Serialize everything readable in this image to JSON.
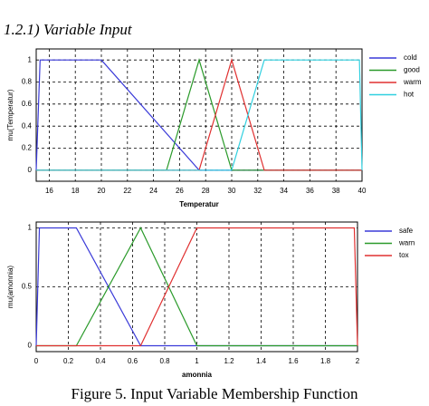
{
  "heading": "1.2.1) Variable Input",
  "caption": "Figure 5. Input Variable Membership Function",
  "chart_data": [
    {
      "type": "line",
      "xlabel": "Temperatur",
      "ylabel": "mu(Temperatur)",
      "xlim": [
        15,
        40
      ],
      "xticks": [
        16,
        18,
        20,
        22,
        24,
        26,
        28,
        30,
        32,
        34,
        36,
        38,
        40
      ],
      "ylim": [
        -0.1,
        1.1
      ],
      "yticks": [
        0,
        0.2,
        0.4,
        0.6,
        0.8,
        1
      ],
      "grid": true,
      "series": [
        {
          "name": "cold",
          "color": "#3a3ad8",
          "x": [
            15,
            15.3,
            20,
            27.5,
            40
          ],
          "values": [
            0,
            1,
            1,
            0,
            0
          ]
        },
        {
          "name": "good",
          "color": "#2a9a2a",
          "x": [
            15,
            25,
            27.5,
            30,
            40
          ],
          "values": [
            0,
            0,
            1,
            0,
            0
          ]
        },
        {
          "name": "warm",
          "color": "#e03030",
          "x": [
            15,
            27.5,
            30,
            32.5,
            40
          ],
          "values": [
            0,
            0,
            1,
            0,
            0
          ]
        },
        {
          "name": "hot",
          "color": "#30d0e0",
          "x": [
            15,
            30,
            32.5,
            39.8,
            40
          ],
          "values": [
            0,
            0,
            1,
            1,
            0
          ]
        }
      ]
    },
    {
      "type": "line",
      "xlabel": "amonnia",
      "ylabel": "mu(amonnia)",
      "xlim": [
        0,
        2
      ],
      "xticks": [
        0,
        0.2,
        0.4,
        0.6,
        0.8,
        1,
        1.2,
        1.4,
        1.6,
        1.8,
        2
      ],
      "ylim": [
        -0.05,
        1.05
      ],
      "yticks": [
        0,
        0.5,
        1
      ],
      "grid": true,
      "series": [
        {
          "name": "safe",
          "color": "#3a3ad8",
          "x": [
            0,
            0.02,
            0.25,
            0.65,
            1,
            2
          ],
          "values": [
            0,
            1,
            1,
            0,
            0,
            0
          ]
        },
        {
          "name": "warn",
          "color": "#2a9a2a",
          "x": [
            0,
            0.25,
            0.65,
            1,
            2
          ],
          "values": [
            0,
            0,
            1,
            0,
            0
          ]
        },
        {
          "name": "tox",
          "color": "#e03030",
          "x": [
            0,
            0.65,
            1,
            1.98,
            2
          ],
          "values": [
            0,
            0,
            1,
            1,
            0
          ]
        }
      ]
    }
  ]
}
